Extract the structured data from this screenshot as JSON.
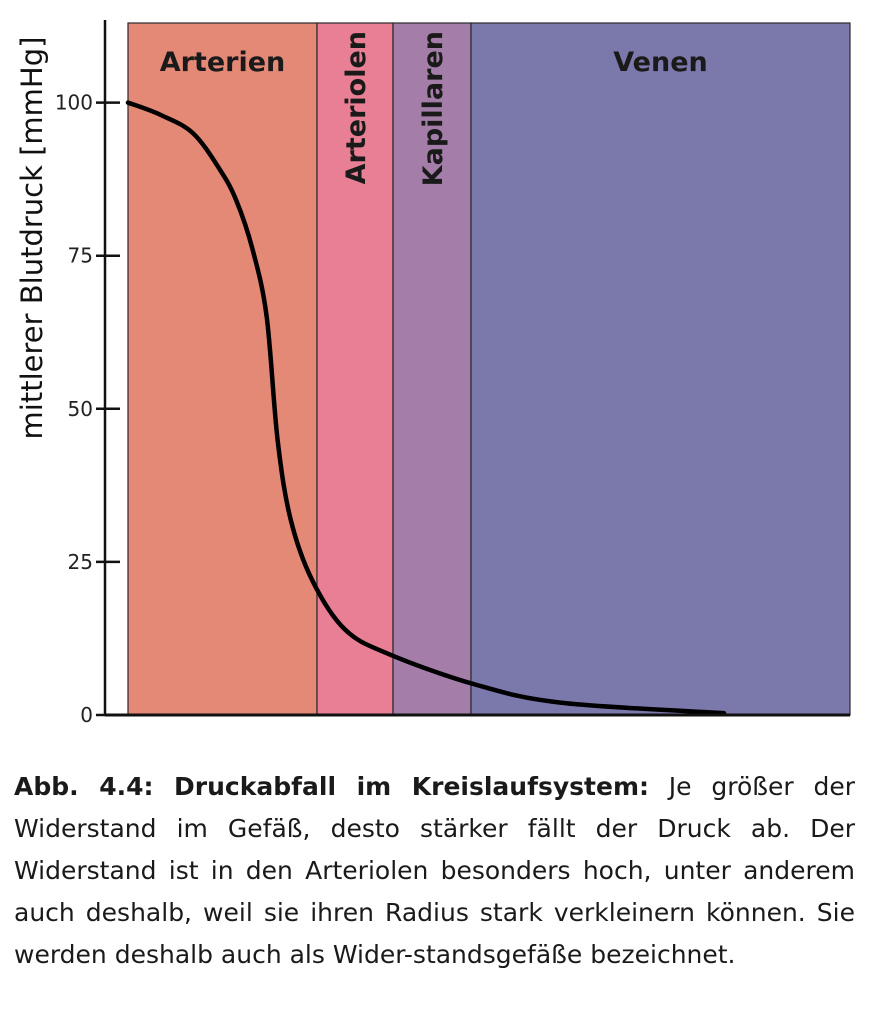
{
  "chart_data": {
    "type": "line",
    "ylabel": "mittlerer Blutdruck [mmHg]",
    "xlabel": "",
    "ylim": [
      0,
      113
    ],
    "y_ticks": [
      "0",
      "25",
      "50",
      "75",
      "100"
    ],
    "grid": false,
    "regions": [
      {
        "label": "Arterien",
        "color": "#e58977",
        "orientation": "horizontal"
      },
      {
        "label": "Arteriolen",
        "color": "#e87f95",
        "orientation": "vertical"
      },
      {
        "label": "Kapillaren",
        "color": "#a47ea8",
        "orientation": "vertical"
      },
      {
        "label": "Venen",
        "color": "#7b78ab",
        "orientation": "horizontal"
      }
    ],
    "series": [
      {
        "color": "#000000",
        "points": [
          [
            0,
            100
          ],
          [
            0.3,
            98
          ],
          [
            0.6,
            95
          ],
          [
            0.85,
            89
          ],
          [
            1.0,
            84
          ],
          [
            1.15,
            76
          ],
          [
            1.28,
            65
          ],
          [
            1.38,
            45
          ],
          [
            1.5,
            32
          ],
          [
            1.7,
            22
          ],
          [
            2.0,
            14
          ],
          [
            2.4,
            10
          ],
          [
            3.2,
            5
          ],
          [
            4.0,
            2
          ],
          [
            5.5,
            0.3
          ]
        ]
      }
    ]
  },
  "caption": {
    "bold": "Abb. 4.4: Druckabfall im Kreislaufsystem:",
    "text": " Je größer der Widerstand im Gefäß, desto stärker fällt der Druck ab. Der Widerstand ist in den Arteriolen besonders hoch, unter anderem auch deshalb, weil sie ihren Radius stark verkleinern können. Sie werden deshalb auch als Wider-standsgefäße bezeichnet."
  }
}
